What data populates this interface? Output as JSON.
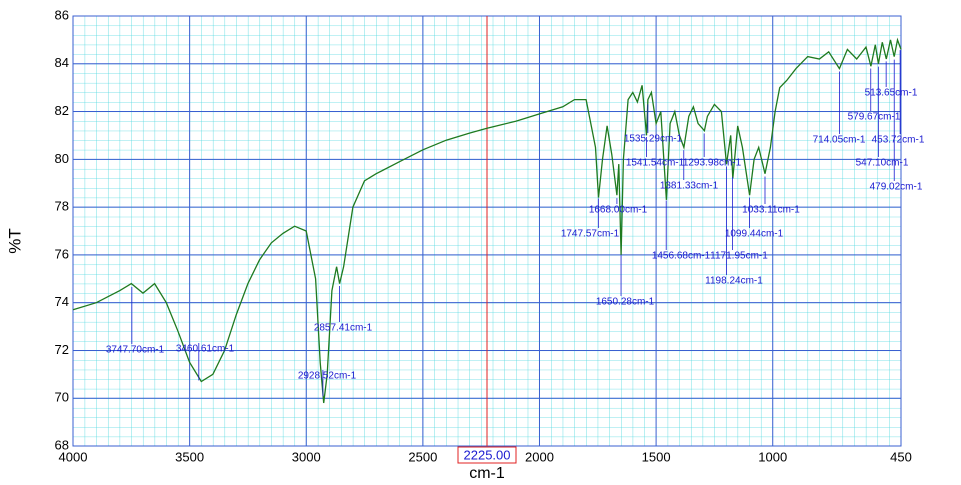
{
  "chart_data": {
    "type": "line",
    "xlabel": "cm-1",
    "ylabel": "%T",
    "xlim": [
      4000,
      450
    ],
    "ylim": [
      68,
      86
    ],
    "xticks": [
      4000,
      3500,
      3000,
      2500,
      2000,
      1500,
      1000,
      450
    ],
    "yticks": [
      68,
      70,
      72,
      74,
      76,
      78,
      80,
      82,
      84,
      86
    ],
    "grid": true,
    "cursor": {
      "value": 2225,
      "label": "2225.00"
    },
    "series": [
      {
        "color": "#1f7a1f",
        "x": [
          4000,
          3900,
          3800,
          3750,
          3700,
          3650,
          3600,
          3550,
          3500,
          3450,
          3400,
          3350,
          3300,
          3250,
          3200,
          3150,
          3100,
          3050,
          3000,
          2960,
          2940,
          2925,
          2910,
          2890,
          2870,
          2857,
          2840,
          2800,
          2750,
          2700,
          2600,
          2500,
          2400,
          2300,
          2225,
          2100,
          2000,
          1900,
          1850,
          1800,
          1760,
          1747,
          1730,
          1710,
          1690,
          1668,
          1660,
          1650,
          1640,
          1620,
          1600,
          1580,
          1560,
          1541,
          1535,
          1520,
          1500,
          1480,
          1456,
          1440,
          1420,
          1400,
          1381,
          1360,
          1340,
          1320,
          1293,
          1280,
          1250,
          1220,
          1198,
          1180,
          1171,
          1150,
          1130,
          1099,
          1080,
          1060,
          1033,
          1010,
          990,
          970,
          940,
          900,
          850,
          800,
          760,
          714,
          680,
          640,
          600,
          579,
          560,
          547,
          530,
          513,
          495,
          479,
          465,
          450
        ],
        "values": [
          73.7,
          74.0,
          74.5,
          74.8,
          74.4,
          74.8,
          74.0,
          72.8,
          71.5,
          70.7,
          71.0,
          72.0,
          73.5,
          74.8,
          75.8,
          76.5,
          76.9,
          77.2,
          77.0,
          75.0,
          71.5,
          69.8,
          71.0,
          74.5,
          75.5,
          74.8,
          75.5,
          78.0,
          79.1,
          79.4,
          79.9,
          80.4,
          80.8,
          81.1,
          81.3,
          81.6,
          81.9,
          82.2,
          82.5,
          82.5,
          80.5,
          78.4,
          80.0,
          81.4,
          80.2,
          78.5,
          79.8,
          76.0,
          80.0,
          82.5,
          82.8,
          82.4,
          83.1,
          81.0,
          82.5,
          82.8,
          81.5,
          82.0,
          78.3,
          81.5,
          82.0,
          81.0,
          80.5,
          81.8,
          82.2,
          81.5,
          81.2,
          81.8,
          82.3,
          82.0,
          79.8,
          81.0,
          79.2,
          81.4,
          80.5,
          78.5,
          80.0,
          80.5,
          79.4,
          80.5,
          82.0,
          83.0,
          83.3,
          83.8,
          84.3,
          84.2,
          84.5,
          83.8,
          84.6,
          84.2,
          84.7,
          83.9,
          84.8,
          84.0,
          84.9,
          84.2,
          85.0,
          84.3,
          85.0,
          84.6
        ]
      }
    ],
    "peaks": [
      {
        "value": 3747.7,
        "label": "3747.70cm-1"
      },
      {
        "value": 3460.61,
        "label": "3460.61cm-1"
      },
      {
        "value": 2928.52,
        "label": "2928.52cm-1"
      },
      {
        "value": 2857.41,
        "label": "2857.41cm-1"
      },
      {
        "value": 1747.57,
        "label": "1747.57cm-1"
      },
      {
        "value": 1668.0,
        "label": "1668.00cm-1"
      },
      {
        "value": 1650.28,
        "label": "1650.28cm-1"
      },
      {
        "value": 1535.29,
        "label": "1535.29cm-1"
      },
      {
        "value": 1541.54,
        "label": "1541.54cm-1"
      },
      {
        "value": 1456.68,
        "label": "1456.68cm-1"
      },
      {
        "value": 1381.33,
        "label": "1381.33cm-1"
      },
      {
        "value": 1293.98,
        "label": "1293.98cm-1"
      },
      {
        "value": 1171.95,
        "label": "1171.95cm-1"
      },
      {
        "value": 1198.24,
        "label": "1198.24cm-1"
      },
      {
        "value": 1099.44,
        "label": "1099.44cm-1"
      },
      {
        "value": 1033.11,
        "label": "1033.11cm-1"
      },
      {
        "value": 714.05,
        "label": "714.05cm-1"
      },
      {
        "value": 579.67,
        "label": "579.67cm-1"
      },
      {
        "value": 513.65,
        "label": "513.65cm-1"
      },
      {
        "value": 453.72,
        "label": "453.72cm-1"
      },
      {
        "value": 547.1,
        "label": "547.10cm-1"
      },
      {
        "value": 479.02,
        "label": "479.02cm-1"
      }
    ]
  }
}
